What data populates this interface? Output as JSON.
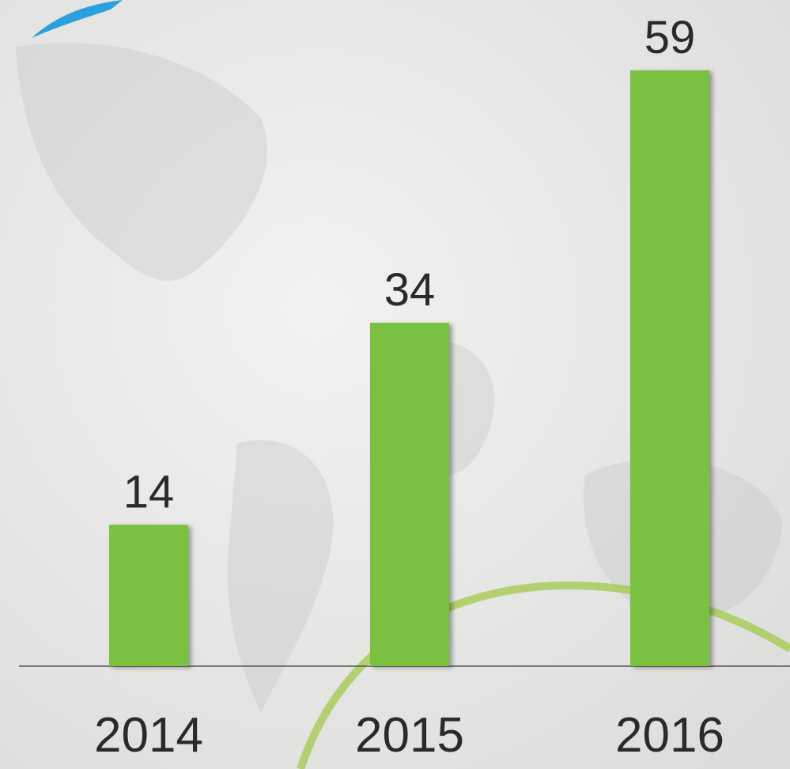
{
  "chart_data": {
    "type": "bar",
    "categories": [
      "2014",
      "2015",
      "2016"
    ],
    "values": [
      14,
      34,
      59
    ],
    "color": "#7ac143",
    "ylim": [
      0,
      59
    ]
  }
}
